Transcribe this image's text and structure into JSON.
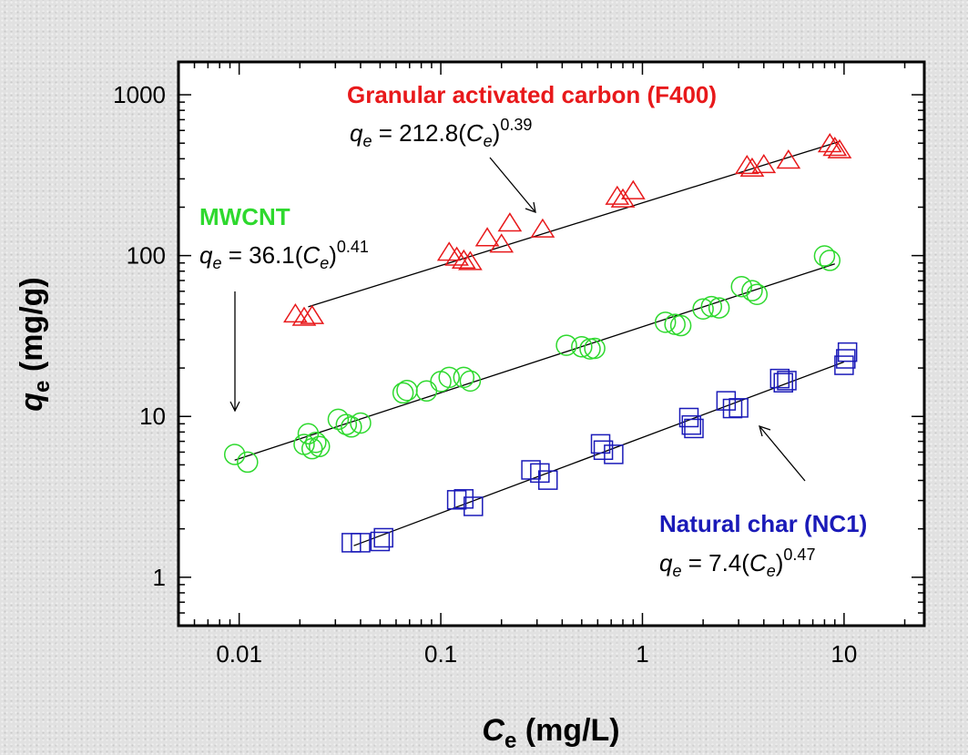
{
  "chart_data": {
    "type": "scatter",
    "xscale": "log",
    "yscale": "log",
    "xlim": [
      0.005,
      25
    ],
    "ylim": [
      0.5,
      1600
    ],
    "x_ticks": [
      0.01,
      0.1,
      1,
      10
    ],
    "y_ticks": [
      1,
      10,
      100,
      1000
    ],
    "x_tick_labels": [
      "0.01",
      "0.1",
      "1",
      "10"
    ],
    "y_tick_labels": [
      "1",
      "10",
      "100",
      "1000"
    ],
    "xlabel": {
      "main": "C",
      "sub": "e",
      "unit": " (mg/L)"
    },
    "ylabel": {
      "main": "q",
      "sub": "e",
      "unit": " (mg/g)"
    },
    "grid": false,
    "legend": "none",
    "series": [
      {
        "name": "Granular activated carbon (F400)",
        "color": "#e8191b",
        "marker": "triangle",
        "equation": {
          "lhs": "q",
          "lhs_sub": "e",
          "eq": " = ",
          "coef": "212.8",
          "paren_open": "(",
          "var": "C",
          "var_sub": "e",
          "paren_close": ")",
          "exponent": "0.39"
        },
        "fit": {
          "coef": 212.8,
          "exponent": 0.39,
          "x_range": [
            0.022,
            9.5
          ]
        },
        "points": [
          [
            0.019,
            43
          ],
          [
            0.021,
            41
          ],
          [
            0.023,
            42
          ],
          [
            0.11,
            104
          ],
          [
            0.12,
            97
          ],
          [
            0.13,
            93
          ],
          [
            0.14,
            91
          ],
          [
            0.17,
            128
          ],
          [
            0.2,
            117
          ],
          [
            0.22,
            158
          ],
          [
            0.32,
            145
          ],
          [
            0.75,
            232
          ],
          [
            0.8,
            223
          ],
          [
            0.9,
            251
          ],
          [
            3.3,
            360
          ],
          [
            3.5,
            347
          ],
          [
            4.0,
            365
          ],
          [
            5.3,
            389
          ],
          [
            8.5,
            492
          ],
          [
            9.0,
            467
          ],
          [
            9.5,
            451
          ]
        ]
      },
      {
        "name": "MWCNT",
        "color": "#2ed92e",
        "marker": "circle",
        "equation": {
          "lhs": "q",
          "lhs_sub": "e",
          "eq": " = ",
          "coef": "36.1",
          "paren_open": "(",
          "var": "C",
          "var_sub": "e",
          "paren_close": ")",
          "exponent": "0.41"
        },
        "fit": {
          "coef": 36.1,
          "exponent": 0.41,
          "x_range": [
            0.0095,
            9
          ]
        },
        "points": [
          [
            0.0095,
            5.8
          ],
          [
            0.011,
            5.2
          ],
          [
            0.021,
            6.7
          ],
          [
            0.022,
            7.8
          ],
          [
            0.023,
            6.3
          ],
          [
            0.024,
            6.9
          ],
          [
            0.025,
            6.5
          ],
          [
            0.031,
            9.6
          ],
          [
            0.034,
            8.9
          ],
          [
            0.036,
            8.6
          ],
          [
            0.04,
            9.1
          ],
          [
            0.065,
            14.0
          ],
          [
            0.068,
            14.5
          ],
          [
            0.085,
            14.4
          ],
          [
            0.1,
            16.5
          ],
          [
            0.11,
            17.5
          ],
          [
            0.13,
            17.5
          ],
          [
            0.14,
            16.6
          ],
          [
            0.42,
            27.7
          ],
          [
            0.5,
            27.1
          ],
          [
            0.55,
            26.3
          ],
          [
            0.58,
            26.5
          ],
          [
            1.3,
            38.5
          ],
          [
            1.45,
            37.4
          ],
          [
            1.55,
            36.7
          ],
          [
            2.0,
            46.6
          ],
          [
            2.2,
            48.2
          ],
          [
            2.4,
            47.3
          ],
          [
            3.1,
            64.1
          ],
          [
            3.5,
            60.5
          ],
          [
            3.7,
            57.4
          ],
          [
            8.0,
            99.5
          ],
          [
            8.5,
            93.4
          ]
        ]
      },
      {
        "name": "Natural char (NC1)",
        "color": "#1a1ab8",
        "marker": "square",
        "equation": {
          "lhs": "q",
          "lhs_sub": "e",
          "eq": " = ",
          "coef": "7.4",
          "paren_open": "(",
          "var": "C",
          "var_sub": "e",
          "paren_close": ")",
          "exponent": "0.47"
        },
        "fit": {
          "coef": 7.4,
          "exponent": 0.47,
          "x_range": [
            0.037,
            10
          ]
        },
        "points": [
          [
            0.036,
            1.64
          ],
          [
            0.04,
            1.64
          ],
          [
            0.05,
            1.67
          ],
          [
            0.052,
            1.76
          ],
          [
            0.12,
            3.03
          ],
          [
            0.13,
            3.07
          ],
          [
            0.145,
            2.76
          ],
          [
            0.28,
            4.65
          ],
          [
            0.31,
            4.45
          ],
          [
            0.34,
            4.02
          ],
          [
            0.62,
            6.75
          ],
          [
            0.64,
            6.17
          ],
          [
            0.72,
            5.81
          ],
          [
            1.7,
            9.84
          ],
          [
            1.75,
            8.84
          ],
          [
            1.8,
            8.42
          ],
          [
            2.6,
            12.5
          ],
          [
            2.8,
            11.2
          ],
          [
            3.0,
            11.3
          ],
          [
            4.8,
            17.2
          ],
          [
            5.0,
            16.2
          ],
          [
            5.2,
            16.7
          ],
          [
            10.0,
            20.8
          ],
          [
            10.2,
            22.8
          ],
          [
            10.4,
            25.1
          ]
        ]
      }
    ]
  }
}
